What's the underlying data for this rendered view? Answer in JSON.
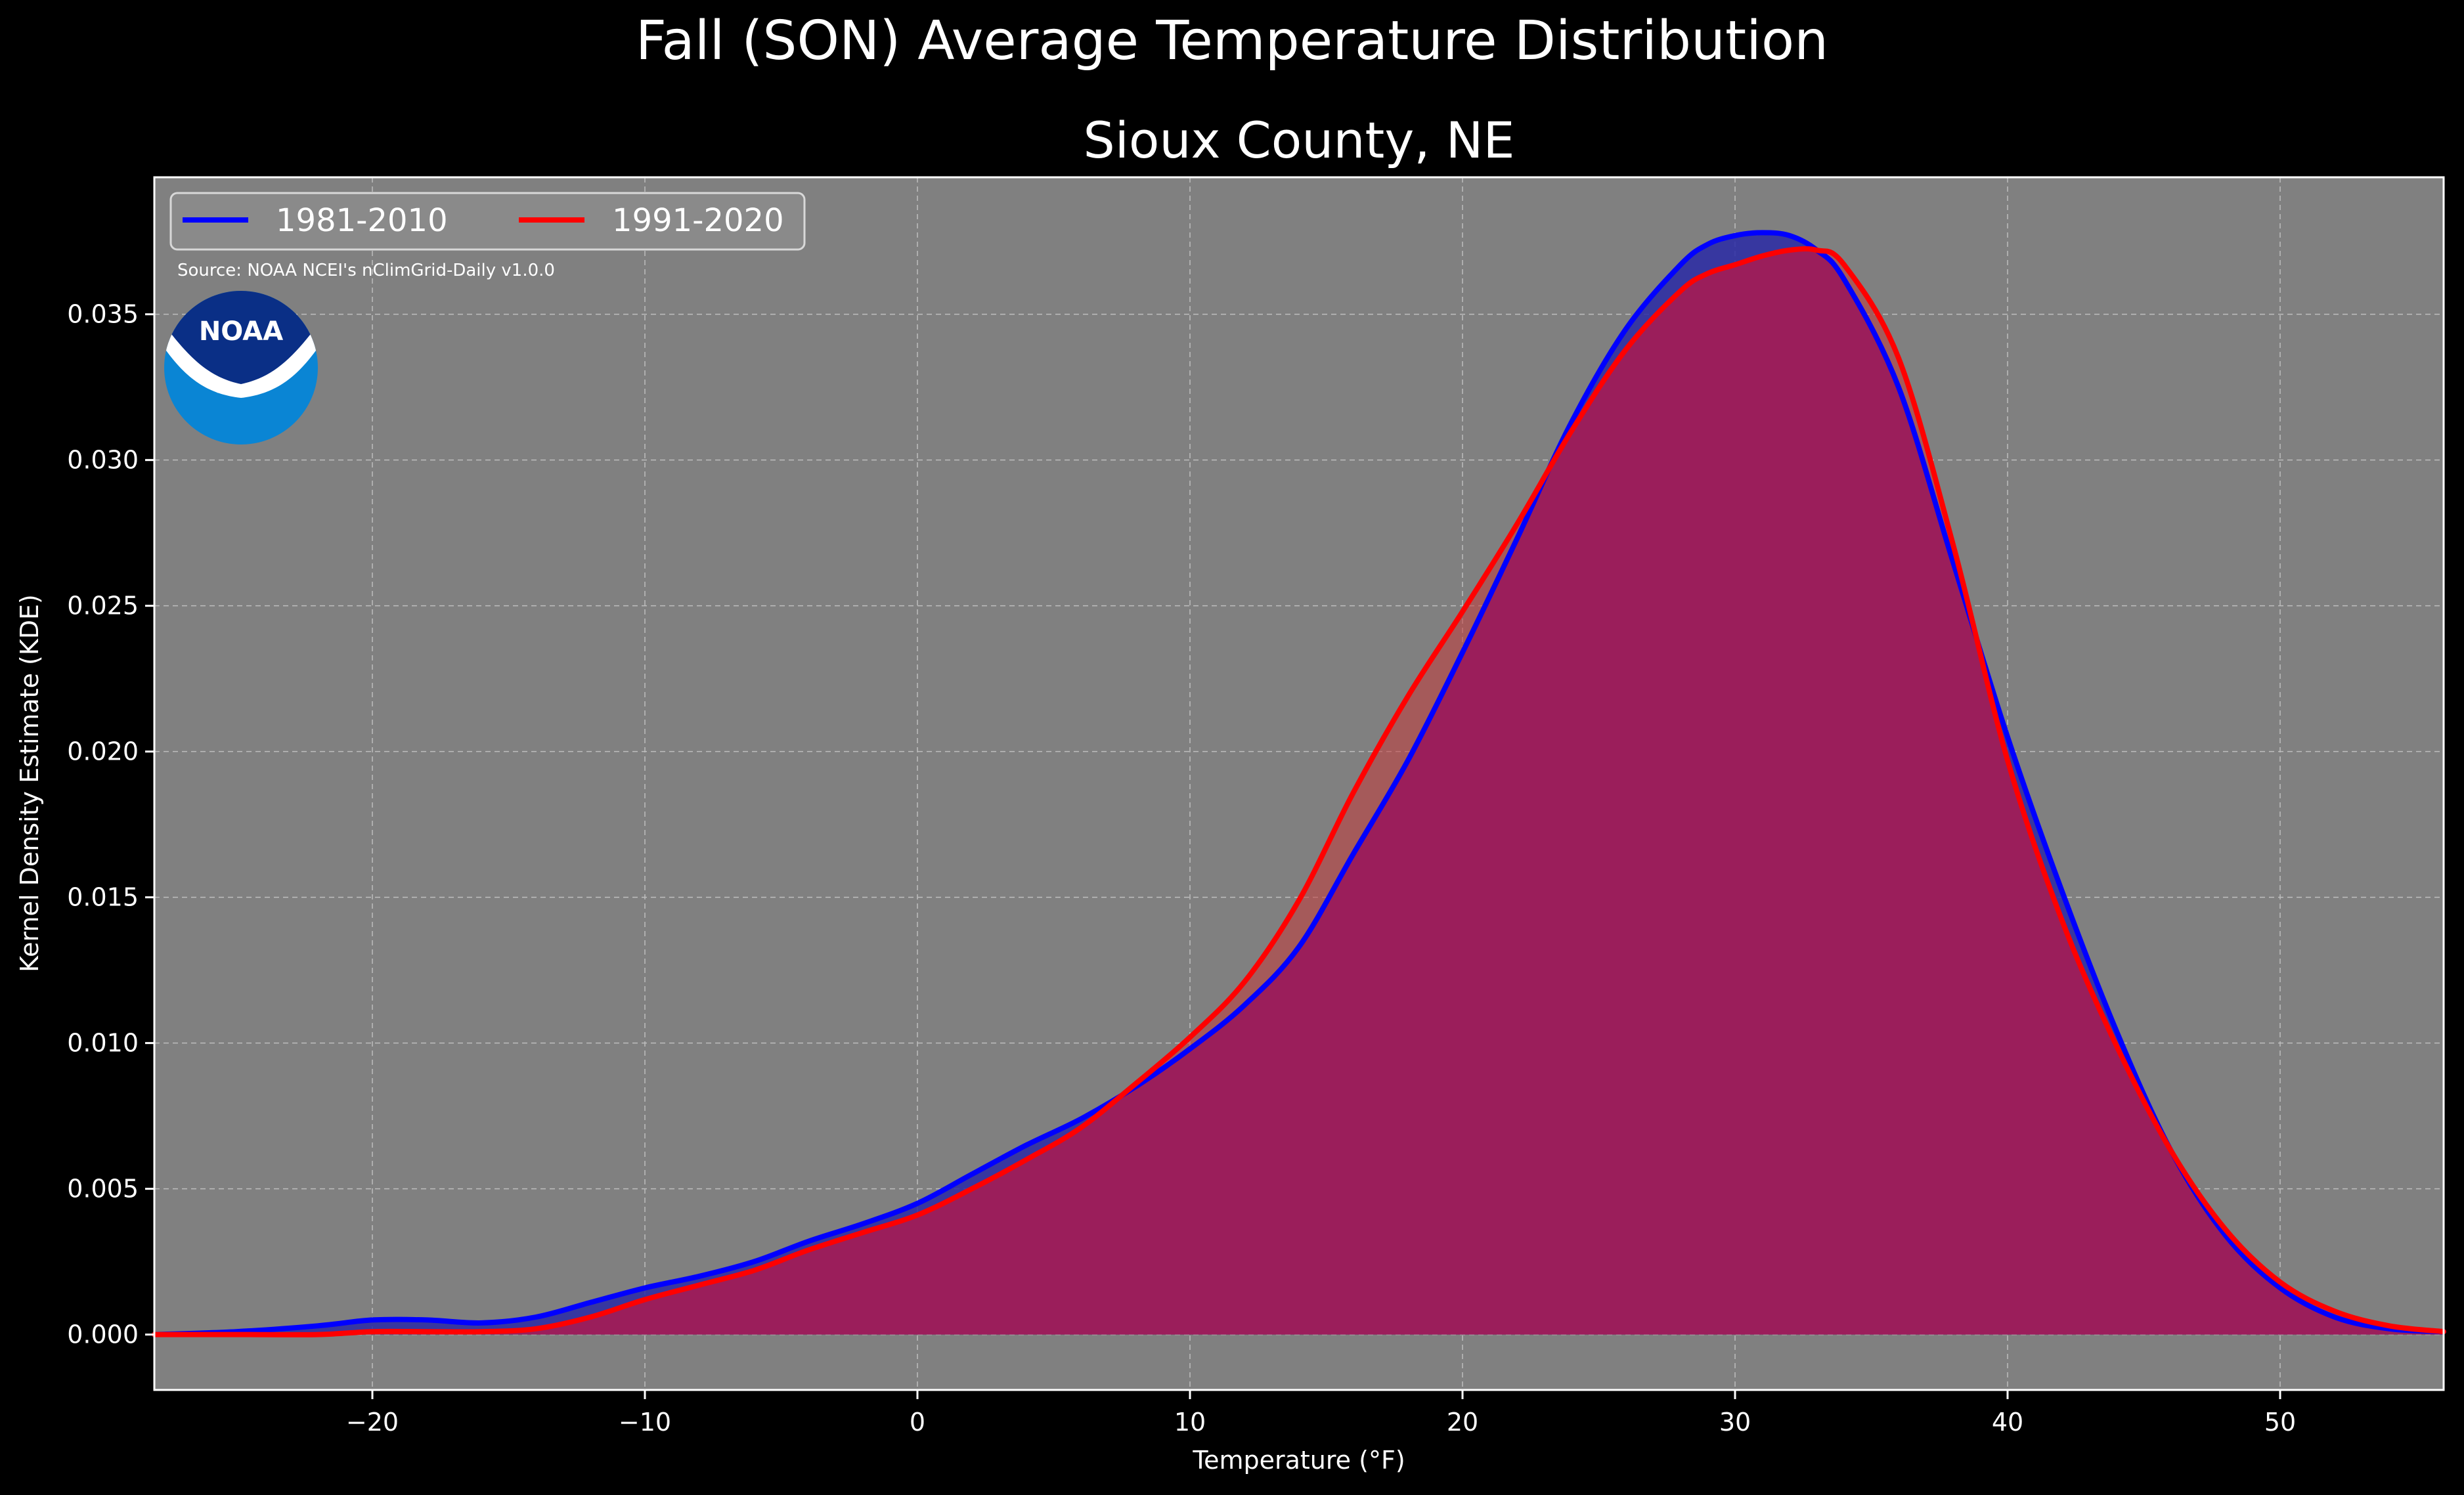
{
  "suptitle": "Fall (SON) Average Temperature Distribution",
  "chart_data": {
    "type": "area",
    "title": "Sioux County, NE",
    "xlabel": "Temperature (°F)",
    "ylabel": "Kernel Density Estimate (KDE)",
    "xlim": [
      -28,
      56
    ],
    "ylim": [
      -0.0019,
      0.0397
    ],
    "xticks": [
      -20,
      -10,
      0,
      10,
      20,
      30,
      40,
      50
    ],
    "xtick_labels": [
      "−20",
      "−10",
      "0",
      "10",
      "20",
      "30",
      "40",
      "50"
    ],
    "yticks": [
      0.0,
      0.005,
      0.01,
      0.015,
      0.02,
      0.025,
      0.03,
      0.035
    ],
    "ytick_labels": [
      "0.000",
      "0.005",
      "0.010",
      "0.015",
      "0.020",
      "0.025",
      "0.030",
      "0.035"
    ],
    "grid": true,
    "legend_position": "top-left",
    "series": [
      {
        "name": "1981-2010",
        "color": "#0000ff",
        "x": [
          -28,
          -25,
          -22,
          -20,
          -18,
          -16,
          -14,
          -12,
          -10,
          -8,
          -6,
          -4,
          -2,
          0,
          2,
          4,
          6,
          8,
          10,
          12,
          14,
          16,
          18,
          20,
          22,
          24,
          26,
          28,
          29,
          30,
          31,
          32,
          33,
          34,
          36,
          38,
          40,
          42,
          44,
          46,
          48,
          50,
          52,
          54,
          56
        ],
        "y": [
          0.0,
          0.0001,
          0.0003,
          0.0005,
          0.0005,
          0.0004,
          0.0006,
          0.0011,
          0.0016,
          0.002,
          0.0025,
          0.0032,
          0.0038,
          0.0045,
          0.0055,
          0.0065,
          0.0074,
          0.0085,
          0.0098,
          0.0113,
          0.0133,
          0.0165,
          0.0197,
          0.0234,
          0.0273,
          0.0313,
          0.0345,
          0.0367,
          0.0374,
          0.0377,
          0.0378,
          0.0377,
          0.0372,
          0.0362,
          0.0325,
          0.0265,
          0.0205,
          0.0152,
          0.0104,
          0.0063,
          0.0034,
          0.0016,
          0.0006,
          0.0002,
          0.0001
        ]
      },
      {
        "name": "1991-2020",
        "color": "#ff0000",
        "x": [
          -28,
          -25,
          -22,
          -20,
          -18,
          -16,
          -14,
          -12,
          -10,
          -8,
          -6,
          -4,
          -2,
          0,
          2,
          4,
          6,
          8,
          10,
          12,
          14,
          16,
          18,
          20,
          22,
          24,
          26,
          28,
          29,
          30,
          31,
          32,
          33,
          34,
          36,
          38,
          40,
          42,
          44,
          46,
          48,
          50,
          52,
          54,
          56
        ],
        "y": [
          0.0,
          0.0,
          0.0,
          0.0001,
          0.0001,
          0.0001,
          0.0002,
          0.0006,
          0.0012,
          0.0017,
          0.0022,
          0.0029,
          0.0035,
          0.0041,
          0.005,
          0.006,
          0.0071,
          0.0086,
          0.0102,
          0.0121,
          0.0149,
          0.0186,
          0.0219,
          0.0248,
          0.0278,
          0.031,
          0.0338,
          0.0358,
          0.0364,
          0.0367,
          0.037,
          0.0372,
          0.0372,
          0.0367,
          0.0335,
          0.0271,
          0.0197,
          0.0142,
          0.0099,
          0.0063,
          0.0036,
          0.0018,
          0.0008,
          0.0003,
          0.0001
        ]
      }
    ],
    "annotations": [
      "Source: NOAA NCEI's nClimGrid-Daily v1.0.0"
    ]
  },
  "logo": {
    "text": "NOAA",
    "colors": {
      "outer": "#0a85d4",
      "inner": "#0a2f86"
    }
  },
  "colors": {
    "figure_bg": "#000000",
    "plot_bg": "#808080",
    "fill_blue": "#2a2aa6",
    "fill_overlap": "#9b1e5b",
    "fill_red_only": "#c23a3a"
  }
}
